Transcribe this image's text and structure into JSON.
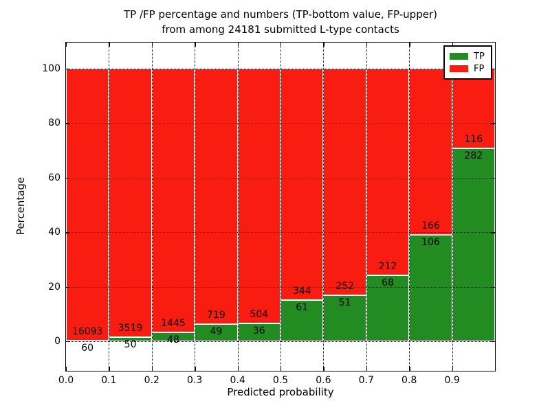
{
  "chart_data": {
    "type": "bar",
    "stacked": true,
    "title_line1": "TP /FP percentage and numbers (TP-bottom value, FP-upper)",
    "title_line2": "from among 24181 submitted L-type contacts",
    "total_submitted": 24181,
    "xlabel": "Predicted probability",
    "ylabel": "Percentage",
    "legend_position": "upper right",
    "legend": [
      {
        "label": "TP",
        "color": "#228b22"
      },
      {
        "label": "FP",
        "color": "#f91d11"
      }
    ],
    "categories": [
      "0.0",
      "0.1",
      "0.2",
      "0.3",
      "0.4",
      "0.5",
      "0.6",
      "0.7",
      "0.8",
      "0.9"
    ],
    "series": [
      {
        "name": "TP",
        "values": [
          60,
          50,
          48,
          49,
          36,
          61,
          51,
          68,
          106,
          282
        ]
      },
      {
        "name": "FP",
        "values": [
          16093,
          3519,
          1445,
          719,
          504,
          344,
          252,
          212,
          166,
          116
        ]
      }
    ],
    "bar_width": 0.1,
    "xlim": [
      0.0,
      1.0
    ],
    "ylim": [
      -11,
      110
    ],
    "xtick_labels": [
      "0.0",
      "0.1",
      "0.2",
      "0.3",
      "0.4",
      "0.5",
      "0.6",
      "0.7",
      "0.8",
      "0.9"
    ],
    "yticks": [
      0,
      20,
      40,
      60,
      80,
      100
    ],
    "grid_style": "dotted",
    "note_semantics": "green TP segment on bottom scaled to tp/(tp+fp) percent, red FP fills to 100 percent; FP count printed above the boundary, TP count below"
  }
}
